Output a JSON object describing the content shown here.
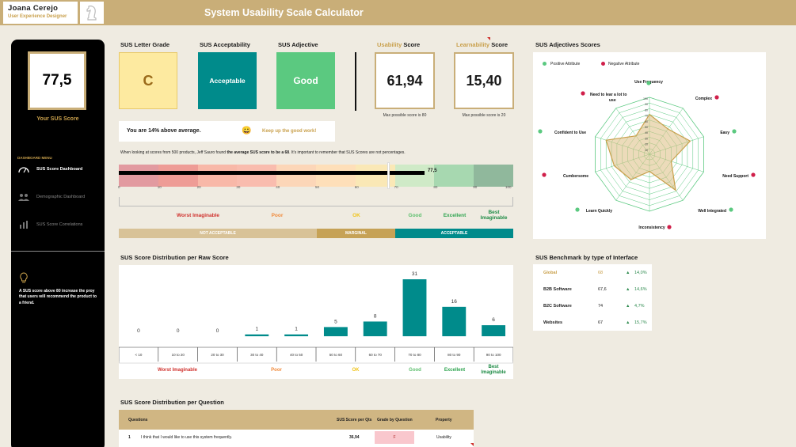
{
  "header": {
    "name": "Joana Cerejo",
    "role": "User Experience Designer",
    "title": "System Usability Scale Calculator"
  },
  "sidebar": {
    "score": "77,5",
    "score_label": "Your SUS Score",
    "menu_header": "DASHBOARD MENU",
    "menu": [
      {
        "label": "SUS Score Dashboard",
        "active": true
      },
      {
        "label": "Demographic Dashboard",
        "active": false
      },
      {
        "label": "SUS Score Correlations",
        "active": false
      }
    ],
    "tip": "A SUS score above 80 increase the proy that users will recommend the product to a friend."
  },
  "kpis": {
    "letter_grade_title": "SUS Letter Grade",
    "letter_grade": "C",
    "acceptability_title": "SUS Acceptability",
    "acceptability": "Acceptable",
    "adjective_title": "SUS Adjective",
    "adjective": "Good",
    "usability_title_a": "Usability",
    "usability_title_b": " Score",
    "usability_score": "61,94",
    "usability_max": "Max possible score is 80",
    "learnability_title_a": "Learnability",
    "learnability_title_b": " Score",
    "learnability_score": "15,40",
    "learnability_max": "Max possible score is 20"
  },
  "above": {
    "text": "You are 14% above average.",
    "emoji": "😀",
    "cheer": "Keep up the good work!"
  },
  "info": {
    "part1": "When looking at scores from 500 products, Jeff Sauro found ",
    "bold": "the average SUS score to be a 68",
    "part2": ". It's important to remember that SUS Scores are not percentages."
  },
  "scale": {
    "value": 77.5,
    "value_label": "77,5",
    "ticks": [
      "0",
      "10",
      "20",
      "30",
      "40",
      "50",
      "60",
      "70",
      "80",
      "90",
      "100"
    ],
    "labels": [
      {
        "text": "Worst Imaginable",
        "color": "#d0312d"
      },
      {
        "text": "Poor",
        "color": "#f08a3a"
      },
      {
        "text": "OK",
        "color": "#f0c419"
      },
      {
        "text": "Good",
        "color": "#5dbf6e"
      },
      {
        "text": "Excellent",
        "color": "#2ea44f"
      },
      {
        "text": "Best Imaginable",
        "color": "#1e8b45"
      }
    ],
    "bands": [
      {
        "text": "NOT ACCEPTABLE",
        "color": "#d8c297"
      },
      {
        "text": "MARGINAL",
        "color": "#c6a256"
      },
      {
        "text": "ACCEPTABLE",
        "color": "#008b8b"
      }
    ]
  },
  "radar": {
    "title": "SUS Adjectives Scores",
    "legend_positive": "Positive Attribute",
    "legend_negative": "Negative Attribute",
    "rings": [
      "100",
      "90",
      "80",
      "70",
      "60",
      "50",
      "40",
      "30",
      "20",
      "10"
    ],
    "axes": [
      {
        "label": "Use Frequency",
        "value": 70,
        "type": "positive"
      },
      {
        "label": "Complex",
        "value": 55,
        "type": "negative"
      },
      {
        "label": "Easy",
        "value": 75,
        "type": "positive"
      },
      {
        "label": "Need Support",
        "value": 40,
        "type": "negative"
      },
      {
        "label": "Well Integrated",
        "value": 78,
        "type": "positive"
      },
      {
        "label": "Inconsistency",
        "value": 30,
        "type": "negative"
      },
      {
        "label": "Learn Quickly",
        "value": 55,
        "type": "positive"
      },
      {
        "label": "Cumbersome",
        "value": 65,
        "type": "negative"
      },
      {
        "label": "Confident to Use",
        "value": 80,
        "type": "positive"
      },
      {
        "label": "Need to lear a lot to use",
        "value": 40,
        "type": "negative"
      }
    ]
  },
  "distribution": {
    "title": "SUS Score Distribution per Raw Score",
    "categories": [
      "< 10",
      "10 to 20",
      "20 to 30",
      "30 to 40",
      "40 to 50",
      "50 to 60",
      "60 to 70",
      "70 to 80",
      "80 to 90",
      "90 to 100"
    ],
    "values": [
      0,
      0,
      0,
      1,
      1,
      5,
      8,
      31,
      16,
      6
    ]
  },
  "benchmark": {
    "title": "SUS Benchmark by type of Interface",
    "rows": [
      {
        "name": "Global",
        "score": "68",
        "delta": "14,0%",
        "highlight": true
      },
      {
        "name": "B2B Software",
        "score": "67,6",
        "delta": "14,6%",
        "highlight": false
      },
      {
        "name": "B2C Software",
        "score": "74",
        "delta": "4,7%",
        "highlight": false
      },
      {
        "name": "Websites",
        "score": "67",
        "delta": "15,7%",
        "highlight": false
      }
    ]
  },
  "questions": {
    "title": "SUS Score Distribution per Question",
    "headers": [
      "Questions",
      "SUS Score per Qts",
      "Grade by Question",
      "Property"
    ],
    "rows": [
      {
        "num": "1",
        "text": "I think that I would like to use this system frequently.",
        "score": "36,94",
        "grade": "F",
        "property": "Usability"
      }
    ]
  },
  "colors": {
    "gold": "#c9ae78",
    "teal": "#008b8b",
    "green": "#5bc980",
    "yellow": "#fdeaa0"
  },
  "chart_data": [
    {
      "type": "bar",
      "title": "SUS Score Distribution per Raw Score",
      "categories": [
        "< 10",
        "10 to 20",
        "20 to 30",
        "30 to 40",
        "40 to 50",
        "50 to 60",
        "60 to 70",
        "70 to 80",
        "80 to 90",
        "90 to 100"
      ],
      "values": [
        0,
        0,
        0,
        1,
        1,
        5,
        8,
        31,
        16,
        6
      ],
      "ylim": [
        0,
        31
      ]
    },
    {
      "type": "radar",
      "title": "SUS Adjectives Scores",
      "categories": [
        "Use Frequency",
        "Complex",
        "Easy",
        "Need Support",
        "Well Integrated",
        "Inconsistency",
        "Learn Quickly",
        "Cumbersome",
        "Confident to Use",
        "Need to lear a lot to use"
      ],
      "values": [
        70,
        55,
        75,
        40,
        78,
        30,
        55,
        65,
        80,
        40
      ],
      "ylim": [
        0,
        100
      ]
    }
  ]
}
